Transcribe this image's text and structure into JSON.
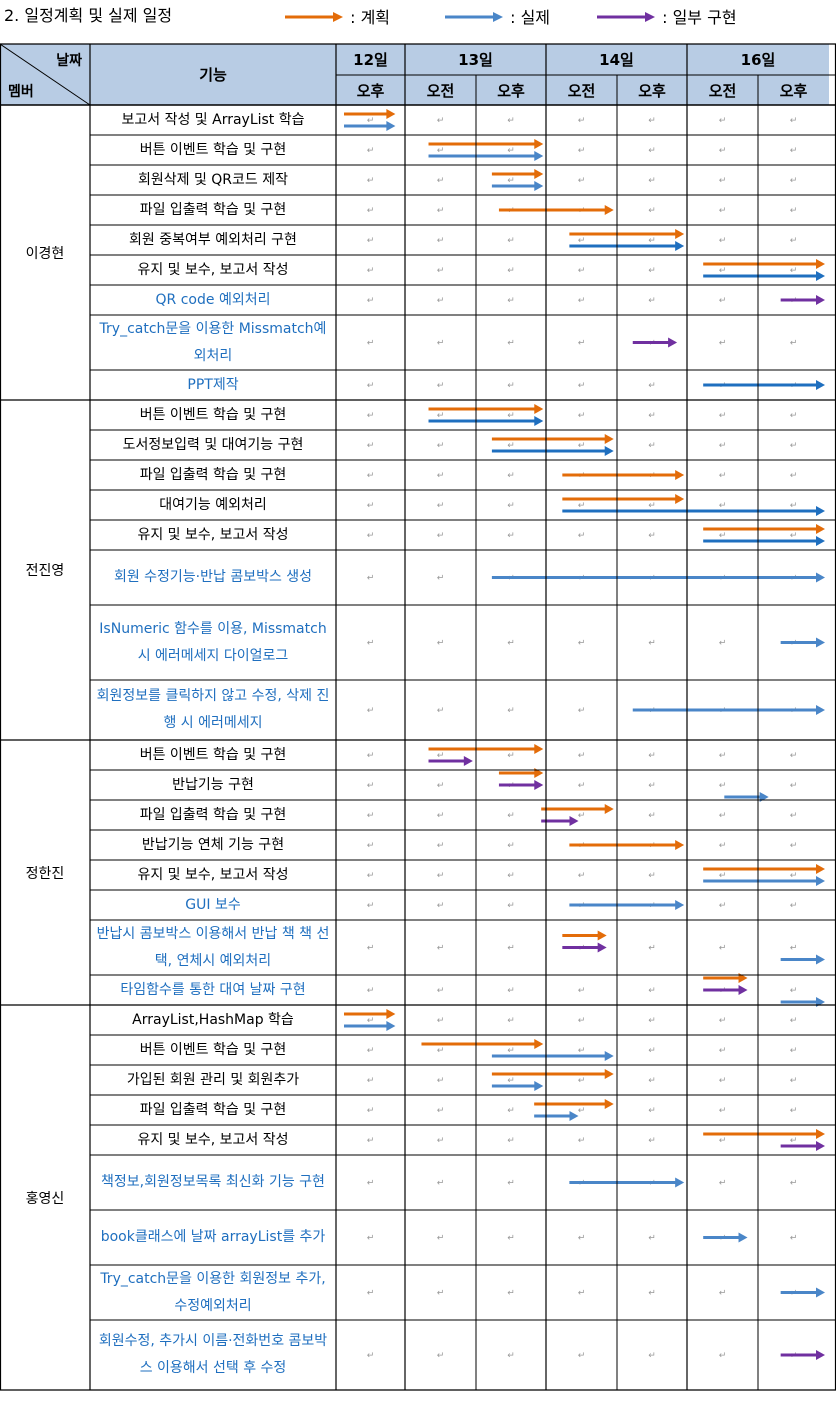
{
  "title": "2. 일정계획 및 실제 일정",
  "legend": [
    {
      "label": ": 계획",
      "color": "#e36c09"
    },
    {
      "label": ": 실제",
      "color": "#4a86c8"
    },
    {
      "label": ": 일부 구현",
      "color": "#7030a0"
    }
  ],
  "header": {
    "date_label": "날짜",
    "member_label": "멤버",
    "feature_label": "기능",
    "days": [
      "12일",
      "13일",
      "14일",
      "16일"
    ],
    "slots": [
      "오후",
      "오전",
      "오후",
      "오전",
      "오후",
      "오전",
      "오후"
    ]
  },
  "colors": {
    "plan": "#e36c09",
    "actual": "#4a86c8",
    "actual_dark": "#1f6fbf",
    "partial": "#7030a0",
    "header_bg": "#b8cce4",
    "blue_text": "#1f6fbf"
  },
  "members": [
    {
      "name": "이경현",
      "rows": [
        {
          "feature": "보고서 작성 및 ArrayList 학습",
          "blue": false,
          "bars": [
            {
              "t": "plan",
              "s": 0,
              "e": 0.9
            },
            {
              "t": "actual",
              "s": 0,
              "e": 0.9
            }
          ]
        },
        {
          "feature": "버튼 이벤트 학습 및 구현",
          "blue": false,
          "bars": [
            {
              "t": "plan",
              "s": 1.2,
              "e": 3.0
            },
            {
              "t": "actual",
              "s": 1.2,
              "e": 3.0
            }
          ]
        },
        {
          "feature": "회원삭제 및 QR코드 제작",
          "blue": false,
          "bars": [
            {
              "t": "plan",
              "s": 2.1,
              "e": 3.0
            },
            {
              "t": "actual",
              "s": 2.1,
              "e": 3.0
            }
          ]
        },
        {
          "feature": "파일 입출력 학습 및 구현",
          "blue": false,
          "bars": [
            {
              "t": "plan",
              "s": 2.2,
              "e": 4.0
            }
          ]
        },
        {
          "feature": "회원 중복여부 예외처리 구현",
          "blue": false,
          "bars": [
            {
              "t": "plan",
              "s": 3.2,
              "e": 5.0
            },
            {
              "t": "actual_dark",
              "s": 3.2,
              "e": 5.0
            }
          ]
        },
        {
          "feature": "유지 및 보수, 보고서 작성",
          "blue": false,
          "bars": [
            {
              "t": "plan",
              "s": 5.1,
              "e": 7.0
            },
            {
              "t": "actual_dark",
              "s": 5.1,
              "e": 7.0
            }
          ]
        },
        {
          "feature": "QR code 예외처리",
          "blue": true,
          "bars": [
            {
              "t": "partial",
              "s": 6.2,
              "e": 7.0
            }
          ]
        },
        {
          "feature": "Try_catch문을 이용한 Missmatch예외처리",
          "blue": true,
          "bars": [
            {
              "t": "partial",
              "s": 4.1,
              "e": 4.9
            }
          ]
        },
        {
          "feature": "PPT제작",
          "blue": true,
          "bars": [
            {
              "t": "actual_dark",
              "s": 5.1,
              "e": 7.0
            }
          ]
        }
      ]
    },
    {
      "name": "전진영",
      "rows": [
        {
          "feature": "버튼 이벤트 학습 및 구현",
          "blue": false,
          "bars": [
            {
              "t": "plan",
              "s": 1.2,
              "e": 3.0
            },
            {
              "t": "actual_dark",
              "s": 1.2,
              "e": 3.0
            }
          ]
        },
        {
          "feature": "도서정보입력 및 대여기능 구현",
          "blue": false,
          "bars": [
            {
              "t": "plan",
              "s": 2.1,
              "e": 4.0
            },
            {
              "t": "actual_dark",
              "s": 2.1,
              "e": 4.0
            }
          ]
        },
        {
          "feature": "파일 입출력 학습 및 구현",
          "blue": false,
          "bars": [
            {
              "t": "plan",
              "s": 3.1,
              "e": 5.0
            }
          ]
        },
        {
          "feature": "대여기능 예외처리",
          "blue": false,
          "bars": [
            {
              "t": "plan",
              "s": 3.1,
              "e": 5.0
            },
            {
              "t": "actual_dark",
              "s": 3.1,
              "e": 7.0
            }
          ]
        },
        {
          "feature": "유지 및 보수, 보고서 작성",
          "blue": false,
          "bars": [
            {
              "t": "plan",
              "s": 5.1,
              "e": 7.0
            },
            {
              "t": "actual_dark",
              "s": 5.1,
              "e": 7.0
            }
          ]
        },
        {
          "feature": "회원 수정기능·반납 콤보박스 생성",
          "blue": true,
          "bars": [
            {
              "t": "actual",
              "s": 2.1,
              "e": 7.0
            }
          ]
        },
        {
          "feature": "IsNumeric 함수를 이용, Missmatch시 에러메세지 다이얼로그",
          "blue": true,
          "bars": [
            {
              "t": "actual",
              "s": 6.2,
              "e": 7.0
            }
          ]
        },
        {
          "feature": "회원정보를 클릭하지 않고 수정, 삭제 진행 시 에러메세지",
          "blue": true,
          "bars": [
            {
              "t": "actual",
              "s": 4.1,
              "e": 7.0
            }
          ]
        }
      ]
    },
    {
      "name": "정한진",
      "rows": [
        {
          "feature": "버튼 이벤트 학습 및 구현",
          "blue": false,
          "bars": [
            {
              "t": "plan",
              "s": 1.2,
              "e": 3.0
            },
            {
              "t": "partial",
              "s": 1.2,
              "e": 2.0
            }
          ]
        },
        {
          "feature": "반납기능 구현",
          "blue": false,
          "bars": [
            {
              "t": "plan",
              "s": 2.2,
              "e": 3.0
            },
            {
              "t": "partial",
              "s": 2.2,
              "e": 3.0
            },
            {
              "t": "actual",
              "s": 5.4,
              "e": 6.2
            }
          ]
        },
        {
          "feature": "파일 입출력 학습 및 구현",
          "blue": false,
          "bars": [
            {
              "t": "plan",
              "s": 2.8,
              "e": 4.0
            },
            {
              "t": "partial",
              "s": 2.8,
              "e": 3.5
            }
          ]
        },
        {
          "feature": "반납기능 연체 기능 구현",
          "blue": false,
          "bars": [
            {
              "t": "plan",
              "s": 3.2,
              "e": 5.0
            }
          ]
        },
        {
          "feature": "유지 및 보수, 보고서 작성",
          "blue": false,
          "bars": [
            {
              "t": "plan",
              "s": 5.1,
              "e": 7.0
            },
            {
              "t": "actual",
              "s": 5.1,
              "e": 7.0
            }
          ]
        },
        {
          "feature": "GUI 보수",
          "blue": true,
          "bars": [
            {
              "t": "actual",
              "s": 3.2,
              "e": 5.0
            }
          ]
        },
        {
          "feature": "반납시 콤보박스 이용해서 반납 책 책 선택, 연체시 예외처리",
          "blue": true,
          "bars": [
            {
              "t": "plan",
              "s": 3.1,
              "e": 3.9
            },
            {
              "t": "partial",
              "s": 3.1,
              "e": 3.9
            },
            {
              "t": "actual",
              "s": 6.2,
              "e": 7.0
            }
          ]
        },
        {
          "feature": "타임함수를 통한 대여 날짜 구현",
          "blue": true,
          "bars": [
            {
              "t": "plan",
              "s": 5.1,
              "e": 5.9
            },
            {
              "t": "partial",
              "s": 5.1,
              "e": 5.9
            },
            {
              "t": "actual",
              "s": 6.2,
              "e": 7.0
            }
          ]
        }
      ]
    },
    {
      "name": "홍영신",
      "rows": [
        {
          "feature": "ArrayList,HashMap 학습",
          "blue": false,
          "bars": [
            {
              "t": "plan",
              "s": 0,
              "e": 0.9
            },
            {
              "t": "actual",
              "s": 0,
              "e": 0.9
            }
          ]
        },
        {
          "feature": "버튼 이벤트 학습 및 구현",
          "blue": false,
          "bars": [
            {
              "t": "plan",
              "s": 1.1,
              "e": 3.0
            },
            {
              "t": "actual",
              "s": 2.1,
              "e": 4.0
            }
          ]
        },
        {
          "feature": "가입된 회원 관리 및 회원추가",
          "blue": false,
          "bars": [
            {
              "t": "plan",
              "s": 2.1,
              "e": 4.0
            },
            {
              "t": "actual",
              "s": 2.1,
              "e": 3.0
            }
          ]
        },
        {
          "feature": "파일 입출력 학습 및 구현",
          "blue": false,
          "bars": [
            {
              "t": "plan",
              "s": 2.7,
              "e": 4.0
            },
            {
              "t": "actual",
              "s": 2.7,
              "e": 3.5
            }
          ]
        },
        {
          "feature": "유지 및 보수, 보고서 작성",
          "blue": false,
          "bars": [
            {
              "t": "plan",
              "s": 5.1,
              "e": 7.0
            },
            {
              "t": "partial",
              "s": 6.2,
              "e": 7.0
            }
          ]
        },
        {
          "feature": "책정보,회원정보목록 최신화 기능 구현",
          "blue": true,
          "bars": [
            {
              "t": "actual",
              "s": 3.2,
              "e": 5.0
            }
          ]
        },
        {
          "feature": "book클래스에 날짜 arrayList를 추가",
          "blue": true,
          "bars": [
            {
              "t": "actual",
              "s": 5.1,
              "e": 5.9
            }
          ]
        },
        {
          "feature": "Try_catch문을 이용한 회원정보 추가, 수정예외처리",
          "blue": true,
          "bars": [
            {
              "t": "actual",
              "s": 6.2,
              "e": 7.0
            }
          ]
        },
        {
          "feature": "회원수정, 추가시 이름·전화번호 콤보박스 이용해서 선택 후 수정",
          "blue": true,
          "bars": [
            {
              "t": "partial",
              "s": 6.2,
              "e": 7.0
            }
          ]
        }
      ]
    }
  ]
}
